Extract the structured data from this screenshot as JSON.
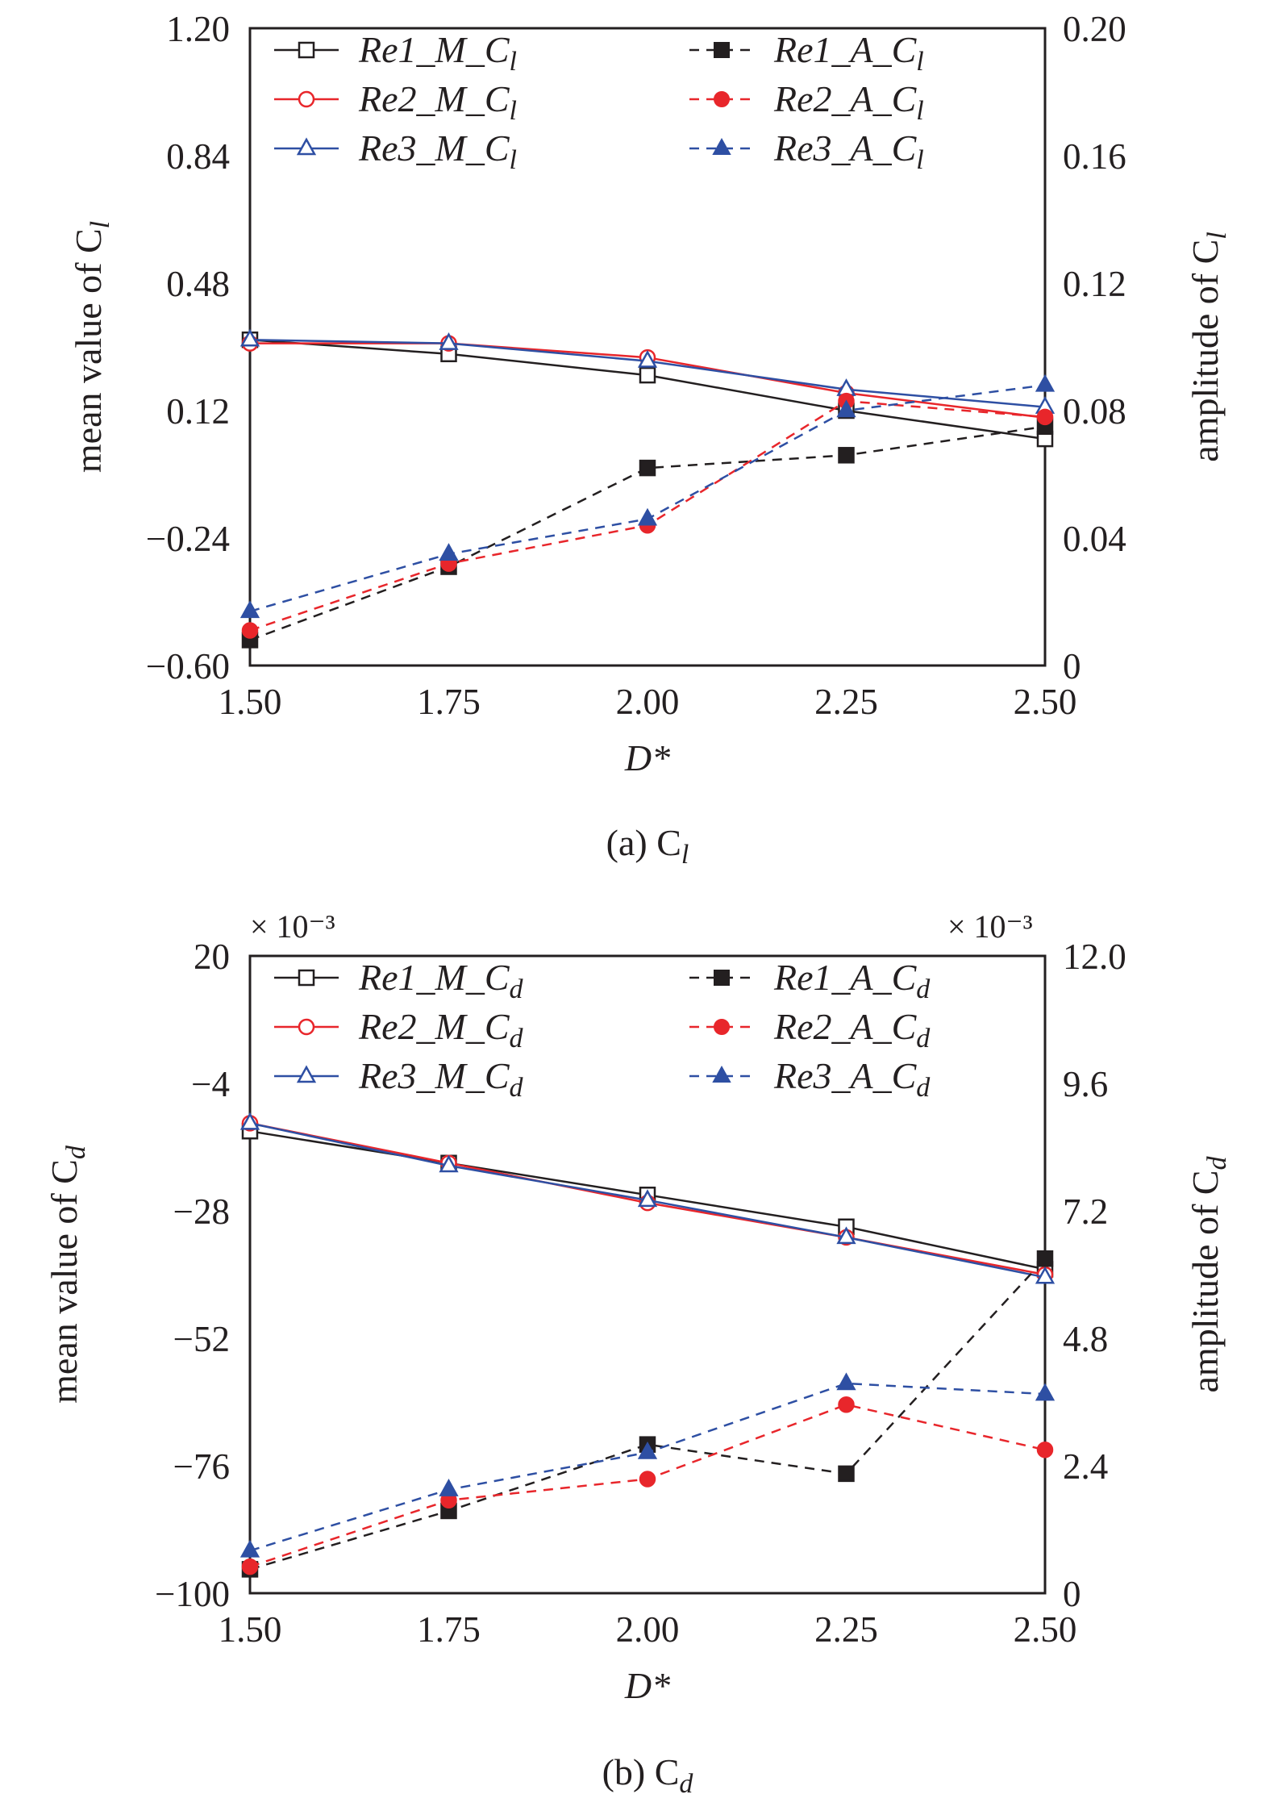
{
  "charts": [
    {
      "x_ticks": [
        "1.50",
        "1.75",
        "2.00",
        "2.25",
        "2.50"
      ],
      "left_ticks": [
        "1.20",
        "0.84",
        "0.48",
        "0.12",
        "−0.24",
        "−0.60"
      ],
      "right_ticks": [
        "0.20",
        "0.16",
        "0.12",
        "0.08",
        "0.04",
        "0"
      ],
      "xlabel": "D*",
      "ylabel_left": "mean value of C",
      "ylabel_left_sub": "l",
      "ylabel_right": "amplitude of C",
      "ylabel_right_sub": "l",
      "caption": "(a) C",
      "caption_sub": "l",
      "left_multiplier": "",
      "right_multiplier": "",
      "legend": [
        {
          "base": "Re1_M_C",
          "sub": "l"
        },
        {
          "base": "Re2_M_C",
          "sub": "l"
        },
        {
          "base": "Re3_M_C",
          "sub": "l"
        },
        {
          "base": "Re1_A_C",
          "sub": "l"
        },
        {
          "base": "Re2_A_C",
          "sub": "l"
        },
        {
          "base": "Re3_A_C",
          "sub": "l"
        }
      ]
    },
    {
      "x_ticks": [
        "1.50",
        "1.75",
        "2.00",
        "2.25",
        "2.50"
      ],
      "left_ticks": [
        "20",
        "−4",
        "−28",
        "−52",
        "−76",
        "−100"
      ],
      "right_ticks": [
        "12.0",
        "9.6",
        "7.2",
        "4.8",
        "2.4",
        "0"
      ],
      "xlabel": "D*",
      "ylabel_left": "mean value of C",
      "ylabel_left_sub": "d",
      "ylabel_right": "amplitude of C",
      "ylabel_right_sub": "d",
      "caption": "(b) C",
      "caption_sub": "d",
      "left_multiplier": "× 10⁻³",
      "right_multiplier": "× 10⁻³",
      "legend": [
        {
          "base": "Re1_M_C",
          "sub": "d"
        },
        {
          "base": "Re2_M_C",
          "sub": "d"
        },
        {
          "base": "Re3_M_C",
          "sub": "d"
        },
        {
          "base": "Re1_A_C",
          "sub": "d"
        },
        {
          "base": "Re2_A_C",
          "sub": "d"
        },
        {
          "base": "Re3_A_C",
          "sub": "d"
        }
      ]
    }
  ],
  "colors": {
    "re1": "#231f20",
    "re2": "#e8262b",
    "re3": "#2e4fa3"
  },
  "chart_data": [
    {
      "type": "line",
      "x": [
        1.5,
        1.75,
        2.0,
        2.25,
        2.5
      ],
      "xlim": [
        1.5,
        2.5
      ],
      "ylim_left": [
        -0.6,
        1.2
      ],
      "ylim_right": [
        0,
        0.2
      ],
      "series": [
        {
          "name": "Re1_M_Cl",
          "axis": "left",
          "style": "solid",
          "marker": "square-open",
          "color": "#231f20",
          "values": [
            0.32,
            0.28,
            0.22,
            0.12,
            0.04
          ]
        },
        {
          "name": "Re2_M_Cl",
          "axis": "left",
          "style": "solid",
          "marker": "circle-open",
          "color": "#e8262b",
          "values": [
            0.31,
            0.31,
            0.27,
            0.17,
            0.1
          ]
        },
        {
          "name": "Re3_M_Cl",
          "axis": "left",
          "style": "solid",
          "marker": "triangle-open",
          "color": "#2e4fa3",
          "values": [
            0.32,
            0.31,
            0.26,
            0.18,
            0.13
          ]
        },
        {
          "name": "Re1_A_Cl",
          "axis": "right",
          "style": "dashed",
          "marker": "square-filled",
          "color": "#231f20",
          "values": [
            0.008,
            0.031,
            0.062,
            0.066,
            0.075
          ]
        },
        {
          "name": "Re2_A_Cl",
          "axis": "right",
          "style": "dashed",
          "marker": "circle-filled",
          "color": "#e8262b",
          "values": [
            0.011,
            0.032,
            0.044,
            0.083,
            0.078
          ]
        },
        {
          "name": "Re3_A_Cl",
          "axis": "right",
          "style": "dashed",
          "marker": "triangle-filled",
          "color": "#2e4fa3",
          "values": [
            0.017,
            0.035,
            0.046,
            0.08,
            0.088
          ]
        }
      ]
    },
    {
      "type": "line",
      "x": [
        1.5,
        1.75,
        2.0,
        2.25,
        2.5
      ],
      "xlim": [
        1.5,
        2.5
      ],
      "ylim_left": [
        -100,
        20
      ],
      "ylim_right": [
        0,
        12
      ],
      "series": [
        {
          "name": "Re1_M_Cd",
          "axis": "left",
          "style": "solid",
          "marker": "square-open",
          "color": "#231f20",
          "values": [
            -13,
            -19,
            -25,
            -31,
            -39
          ]
        },
        {
          "name": "Re2_M_Cd",
          "axis": "left",
          "style": "solid",
          "marker": "circle-open",
          "color": "#e8262b",
          "values": [
            -11.5,
            -19,
            -26.5,
            -33,
            -40
          ]
        },
        {
          "name": "Re3_M_Cd",
          "axis": "left",
          "style": "solid",
          "marker": "triangle-open",
          "color": "#2e4fa3",
          "values": [
            -11.5,
            -19.5,
            -26,
            -33,
            -40.5
          ]
        },
        {
          "name": "Re1_A_Cd",
          "axis": "right",
          "style": "dashed",
          "marker": "square-filled",
          "color": "#231f20",
          "values": [
            0.45,
            1.55,
            2.8,
            2.25,
            6.3
          ]
        },
        {
          "name": "Re2_A_Cd",
          "axis": "right",
          "style": "dashed",
          "marker": "circle-filled",
          "color": "#e8262b",
          "values": [
            0.5,
            1.75,
            2.15,
            3.55,
            2.7
          ]
        },
        {
          "name": "Re3_A_Cd",
          "axis": "right",
          "style": "dashed",
          "marker": "triangle-filled",
          "color": "#2e4fa3",
          "values": [
            0.8,
            1.95,
            2.65,
            3.95,
            3.75
          ]
        }
      ]
    }
  ]
}
